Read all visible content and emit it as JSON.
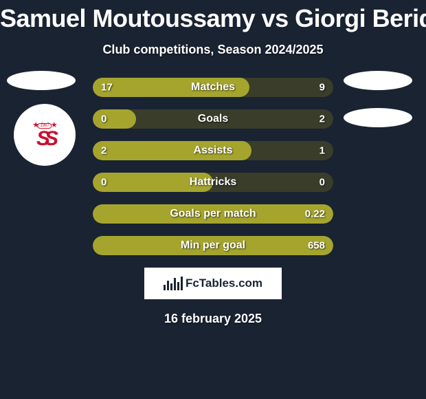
{
  "title": "Samuel Moutoussamy vs Giorgi Beridze",
  "subtitle": "Club competitions, Season 2024/2025",
  "date": "16 february 2025",
  "fctables_label": "FcTables.com",
  "colors": {
    "background": "#1a2332",
    "bar_track": "#3a3d2a",
    "bar_olive": "#a5a52e",
    "text": "#ffffff",
    "sivasspor_red": "#c8102e"
  },
  "left_player": {
    "badges": [
      "generic",
      "sivasspor"
    ],
    "sivasspor_year": "1967"
  },
  "right_player": {
    "badges": [
      "generic",
      "generic"
    ]
  },
  "stats": [
    {
      "label": "Matches",
      "left_val": "17",
      "right_val": "9",
      "left_pct": 65,
      "right_pct": 35,
      "left_color": "#a5a52e",
      "right_color": "#3a3d2a"
    },
    {
      "label": "Goals",
      "left_val": "0",
      "right_val": "2",
      "left_pct": 18,
      "right_pct": 82,
      "left_color": "#a5a52e",
      "right_color": "#3a3d2a"
    },
    {
      "label": "Assists",
      "left_val": "2",
      "right_val": "1",
      "left_pct": 66,
      "right_pct": 34,
      "left_color": "#a5a52e",
      "right_color": "#3a3d2a"
    },
    {
      "label": "Hattricks",
      "left_val": "0",
      "right_val": "0",
      "left_pct": 50,
      "right_pct": 50,
      "left_color": "#a5a52e",
      "right_color": "#3a3d2a"
    },
    {
      "label": "Goals per match",
      "left_val": "",
      "right_val": "0.22",
      "left_pct": 0,
      "right_pct": 100,
      "left_color": "#a5a52e",
      "right_color": "#a5a52e"
    },
    {
      "label": "Min per goal",
      "left_val": "",
      "right_val": "658",
      "left_pct": 0,
      "right_pct": 100,
      "left_color": "#a5a52e",
      "right_color": "#a5a52e"
    }
  ]
}
